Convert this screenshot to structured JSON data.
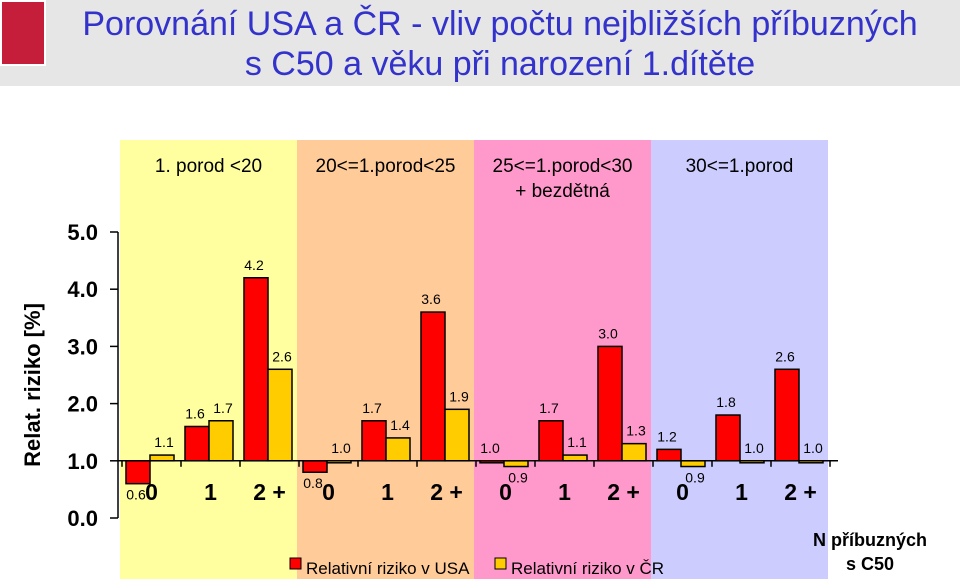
{
  "header": {
    "title_line1": "Porovnání USA a ČR - vliv počtu nejbližších příbuzných",
    "title_line2": "s C50 a věku při narození 1.dítěte"
  },
  "logo": {
    "icon": "institute-logo-icon"
  },
  "chart_data": {
    "type": "bar",
    "ylabel": "Relat. riziko [%]",
    "xlabel": "N příbuzných s C50",
    "ylim": [
      0.0,
      5.0
    ],
    "yticks": [
      "5.0",
      "4.0",
      "3.0",
      "2.0",
      "1.0",
      "0.0"
    ],
    "baseline": 1.0,
    "groups": [
      {
        "label": "1. porod <20",
        "sublabel": "",
        "background": "#ffffa0"
      },
      {
        "label": "20<=1.porod<25",
        "sublabel": "",
        "background": "#ffcc99"
      },
      {
        "label": "25<=1.porod<30",
        "sublabel": "+ bezdětná",
        "background": "#ff99cc"
      },
      {
        "label": "30<=1.porod",
        "sublabel": "",
        "background": "#ccccff"
      }
    ],
    "categories": [
      "0",
      "1",
      "2 +",
      "0",
      "1",
      "2 +",
      "0",
      "1",
      "2 +",
      "0",
      "1",
      "2 +"
    ],
    "series": [
      {
        "name": "Relativní riziko v USA",
        "color": "#ff0000",
        "values": [
          0.6,
          1.6,
          4.2,
          0.8,
          1.7,
          3.6,
          1.0,
          1.7,
          3.0,
          1.2,
          1.8,
          2.6
        ],
        "labels": [
          "0.6",
          "1.6",
          "4.2",
          "0.8",
          "1.7",
          "3.6",
          "1.0",
          "1.7",
          "3.0",
          "1.2",
          "1.8",
          "2.6"
        ]
      },
      {
        "name": "Relativní riziko v ČR",
        "color": "#ffcc00",
        "values": [
          1.1,
          1.7,
          2.6,
          1.0,
          1.4,
          1.9,
          0.9,
          1.1,
          1.3,
          0.9,
          1.0,
          1.0
        ],
        "labels": [
          "1.1",
          "1.7",
          "2.6",
          "1.0",
          "1.4",
          "1.9",
          "0.9",
          "1.1",
          "1.3",
          "0.9",
          "1.0",
          "1.0"
        ]
      }
    ]
  }
}
